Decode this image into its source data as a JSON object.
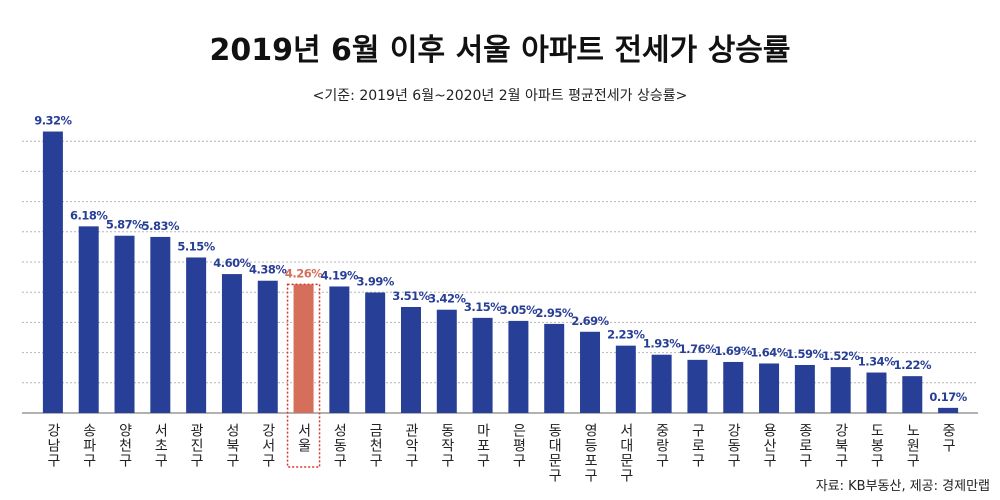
{
  "chart_data": {
    "type": "bar",
    "title": "2019년 6월 이후 서울 아파트 전세가 상승률",
    "subtitle": "<기준: 2019년 6월~2020년 2월 아파트 평균전세가 상승률>",
    "source": "자료: KB부동산, 제공: 경제만랩",
    "categories": [
      "강남구",
      "송파구",
      "양천구",
      "서초구",
      "광진구",
      "성북구",
      "강서구",
      "서울",
      "성동구",
      "금천구",
      "관악구",
      "동작구",
      "마포구",
      "은평구",
      "동대문구",
      "영등포구",
      "서대문구",
      "중랑구",
      "구로구",
      "강동구",
      "용산구",
      "종로구",
      "강북구",
      "도봉구",
      "노원구",
      "중구"
    ],
    "values": [
      9.32,
      6.18,
      5.87,
      5.83,
      5.15,
      4.6,
      4.38,
      4.26,
      4.19,
      3.99,
      3.51,
      3.42,
      3.15,
      3.05,
      2.95,
      2.69,
      2.23,
      1.93,
      1.76,
      1.69,
      1.64,
      1.59,
      1.52,
      1.34,
      1.22,
      0.17
    ],
    "value_labels": [
      "9.32%",
      "6.18%",
      "5.87%",
      "5.83%",
      "5.15%",
      "4.60%",
      "4.38%",
      "4.26%",
      "4.19%",
      "3.99%",
      "3.51%",
      "3.42%",
      "3.15%",
      "3.05%",
      "2.95%",
      "2.69%",
      "2.23%",
      "1.93%",
      "1.76%",
      "1.69%",
      "1.64%",
      "1.59%",
      "1.52%",
      "1.34%",
      "1.22%",
      "0.17%"
    ],
    "color": "#283f98",
    "highlight": 7,
    "highlight_color": "#d56f5c",
    "ylim": [
      0,
      10
    ],
    "yticks": [
      1,
      2,
      3,
      4,
      5,
      6,
      7,
      8,
      9
    ],
    "grid": true
  }
}
